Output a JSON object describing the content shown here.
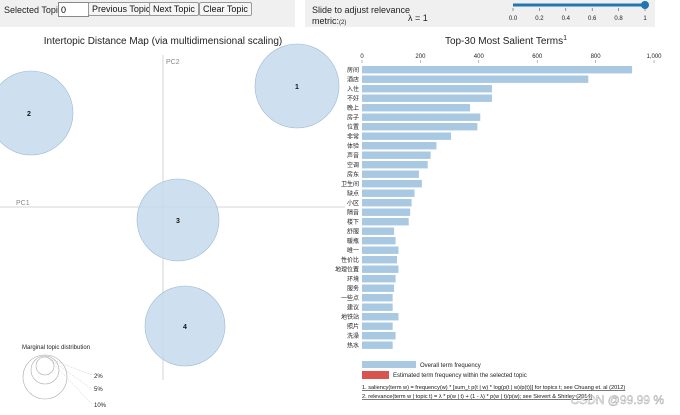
{
  "controls": {
    "selected_topic_label": "Selected Topic:",
    "selected_topic_value": "0",
    "prev_button": "Previous Topic",
    "next_button": "Next Topic",
    "clear_button": "Clear Topic",
    "slider_label": "Slide to adjust relevance",
    "slider_label2": "metric:",
    "slider_sub": "(2)",
    "lambda_text": "λ = 1",
    "lambda_value": 1,
    "slider_ticks": [
      "0.0",
      "0.2",
      "0.4",
      "0.6",
      "0.8",
      "1"
    ]
  },
  "topic_map": {
    "title": "Intertopic Distance Map (via multidimensional scaling)",
    "pc1_label": "PC1",
    "pc2_label": "PC2",
    "topics": [
      "1",
      "2",
      "3",
      "4"
    ],
    "marginal_title": "Marginal topic distribution",
    "marginal_levels": [
      "2%",
      "5%",
      "10%"
    ]
  },
  "chart_data": {
    "type": "bar",
    "orientation": "horizontal",
    "title": "Top-30 Most Salient Terms",
    "title_sup": "1",
    "ticks": [
      "0",
      "200",
      "400",
      "600",
      "800",
      "1,000"
    ],
    "xlim": [
      0,
      1000
    ],
    "categories": [
      "房间",
      "酒店",
      "入住",
      "不好",
      "晚上",
      "房子",
      "位置",
      "非常",
      "体验",
      "声音",
      "空调",
      "房东",
      "卫生间",
      "缺点",
      "小区",
      "隔音",
      "楼下",
      "舒服",
      "暖瓶",
      "唯一",
      "性价比",
      "地理位置",
      "环境",
      "服务",
      "一些点",
      "建议",
      "地铁站",
      "照片",
      "洗澡",
      "热水"
    ],
    "series": [
      {
        "name": "Overall term frequency",
        "color": "#a9c8e2",
        "values": [
          925,
          775,
          445,
          445,
          370,
          405,
          395,
          305,
          255,
          235,
          225,
          195,
          205,
          180,
          170,
          165,
          160,
          110,
          115,
          125,
          120,
          125,
          115,
          110,
          105,
          105,
          125,
          105,
          115,
          105
        ]
      }
    ],
    "legend": {
      "overall": "Overall term frequency",
      "estimated": "Estimated term frequency within the selected topic",
      "estimated_color": "#d9534f"
    },
    "footnote1": "1. saliency(term w) = frequency(w) * [sum_t p(t | w) * log(p(t | w)/p(t))] for topics t; see Chuang et. al (2012)",
    "footnote2": "2. relevance(term w | topic t) = λ * p(w | t) + (1 - λ) * p(w | t)/p(w); see Sievert & Shirley (2014)"
  },
  "watermark": "CSDN @99.99 %"
}
